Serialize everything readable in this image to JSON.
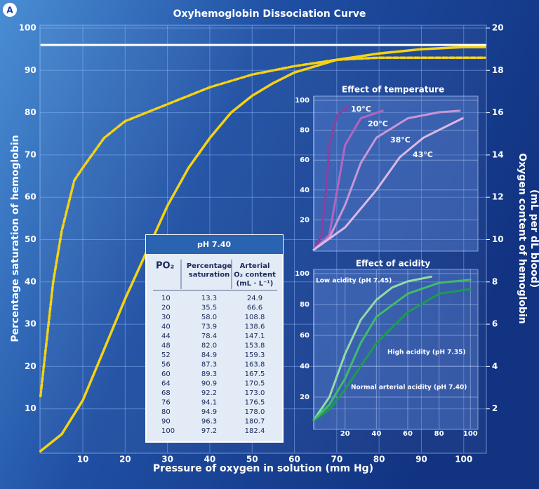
{
  "panel_label": "A",
  "chart_data": [
    {
      "type": "line",
      "title": "Oxyhemoglobin Dissociation Curve",
      "x_label": "Pressure of oxygen in solution (mm Hg)",
      "y_label": "Percentage saturation of hemoglobin",
      "y2_label": [
        "Oxygen content of hemoglobin",
        "(mL per dL blood)"
      ],
      "xlim": [
        0,
        105
      ],
      "xticks": [
        10,
        20,
        30,
        40,
        50,
        60,
        70,
        80,
        90,
        100
      ],
      "ylim": [
        0,
        100
      ],
      "yticks": [
        10,
        20,
        30,
        40,
        50,
        60,
        70,
        80,
        90,
        100
      ],
      "y2lim": [
        0,
        20
      ],
      "y2ticks": [
        2,
        4,
        6,
        8,
        10,
        12,
        14,
        16,
        18,
        20
      ],
      "grid": true,
      "reference_lines": [
        {
          "value": 96,
          "color": "#ffffff"
        }
      ],
      "series": [
        {
          "color": "#f5d313",
          "style": "solid",
          "x": [
            0,
            5,
            10,
            15,
            20,
            25,
            30,
            35,
            40,
            45,
            50,
            55,
            60,
            65,
            70,
            80,
            90,
            100,
            105
          ],
          "values": [
            0,
            4,
            12,
            24,
            36,
            47,
            58,
            67,
            74,
            80,
            84,
            87,
            89.5,
            91,
            92.5,
            94,
            95,
            95.5,
            95.5
          ]
        },
        {
          "color": "#f5d313",
          "style": "dashed",
          "x": [
            0,
            3,
            5,
            8,
            10,
            15,
            20,
            30,
            40,
            50,
            60,
            70,
            80,
            90,
            105
          ],
          "values": [
            13,
            40,
            52,
            64,
            67,
            74,
            78,
            82,
            86,
            89,
            91,
            92.5,
            93,
            93,
            93
          ]
        }
      ]
    },
    {
      "type": "line",
      "title": "Effect of temperature",
      "xlim": [
        0,
        103
      ],
      "ylim": [
        0,
        100
      ],
      "yticks": [
        20,
        40,
        60,
        80,
        100
      ],
      "grid": true,
      "series": [
        {
          "name": "10°C",
          "color": "#8e3f9e",
          "x": [
            0,
            5,
            8,
            10,
            15,
            22
          ],
          "values": [
            0,
            10,
            40,
            70,
            90,
            96
          ]
        },
        {
          "name": "20°C",
          "color": "#b564bf",
          "x": [
            0,
            10,
            15,
            20,
            30,
            44
          ],
          "values": [
            0,
            10,
            40,
            70,
            88,
            93
          ]
        },
        {
          "name": "38°C",
          "color": "#c996d6",
          "x": [
            0,
            10,
            20,
            30,
            40,
            60,
            80,
            93
          ],
          "values": [
            0,
            8,
            30,
            58,
            75,
            88,
            92,
            93
          ]
        },
        {
          "name": "43°C",
          "color": "#dcb8e6",
          "x": [
            0,
            20,
            40,
            55,
            70,
            95
          ],
          "values": [
            0,
            15,
            40,
            62,
            75,
            88
          ]
        }
      ]
    },
    {
      "type": "line",
      "title": "Effect of acidity",
      "xlim": [
        0,
        103
      ],
      "xticks": [
        20,
        40,
        60,
        80,
        100
      ],
      "ylim": [
        0,
        100
      ],
      "yticks": [
        20,
        40,
        60,
        80,
        100
      ],
      "grid": true,
      "series": [
        {
          "name": "Low acidity (pH 7.45)",
          "color": "#93dba5",
          "x": [
            0,
            10,
            20,
            30,
            40,
            50,
            60,
            75
          ],
          "values": [
            5,
            20,
            48,
            70,
            83,
            91,
            95,
            98
          ]
        },
        {
          "name": "High acidity (pH 7.35)",
          "color": "#1d9a52",
          "x": [
            0,
            10,
            20,
            40,
            60,
            80,
            100
          ],
          "values": [
            5,
            12,
            25,
            55,
            75,
            87,
            90
          ]
        },
        {
          "name": "Normal arterial acidity (pH 7.40)",
          "color": "#3fbb6c",
          "x": [
            0,
            10,
            20,
            30,
            40,
            60,
            80,
            100
          ],
          "values": [
            5,
            15,
            32,
            55,
            72,
            87,
            94,
            96
          ]
        }
      ]
    }
  ],
  "table": {
    "title": "pH 7.40",
    "headers": [
      [
        "PO₂"
      ],
      [
        "Percentage",
        "saturation"
      ],
      [
        "Arterial",
        "O₂ content",
        "(mL · L⁻¹)"
      ]
    ],
    "rows": [
      [
        "10",
        "13.3",
        "24.9"
      ],
      [
        "20",
        "35.5",
        "66.6"
      ],
      [
        "30",
        "58.0",
        "108.8"
      ],
      [
        "40",
        "73.9",
        "138.6"
      ],
      [
        "44",
        "78.4",
        "147.1"
      ],
      [
        "48",
        "82.0",
        "153.8"
      ],
      [
        "52",
        "84.9",
        "159.3"
      ],
      [
        "56",
        "87.3",
        "163.8"
      ],
      [
        "60",
        "89.3",
        "167.5"
      ],
      [
        "64",
        "90.9",
        "170.5"
      ],
      [
        "68",
        "92.2",
        "173.0"
      ],
      [
        "76",
        "94.1",
        "176.5"
      ],
      [
        "80",
        "94.9",
        "178.0"
      ],
      [
        "90",
        "96.3",
        "180.7"
      ],
      [
        "100",
        "97.2",
        "182.4"
      ]
    ]
  }
}
